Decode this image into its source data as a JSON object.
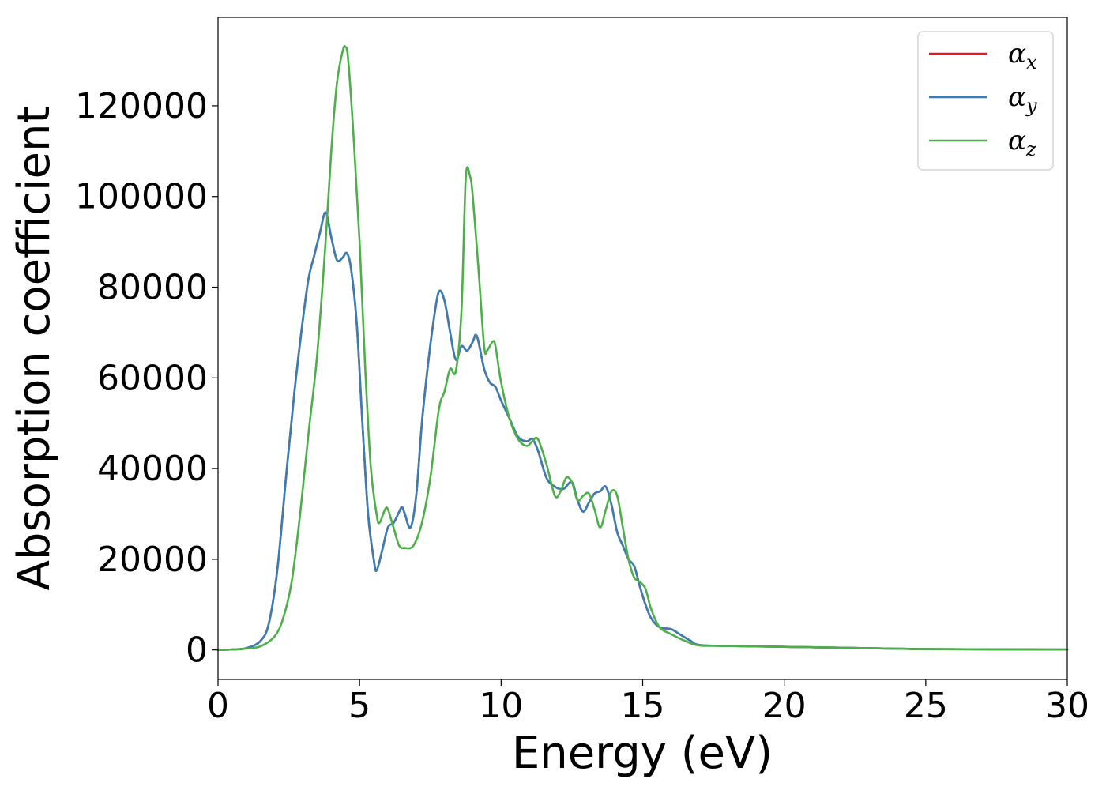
{
  "chart_data": {
    "type": "line",
    "xlabel": "Energy (eV)",
    "ylabel": "Absorption coefficient",
    "xlim": [
      0,
      30
    ],
    "ylim": [
      -6500,
      139500
    ],
    "xticks": [
      0,
      5,
      10,
      15,
      20,
      25,
      30
    ],
    "yticks": [
      0,
      20000,
      40000,
      60000,
      80000,
      100000,
      120000
    ],
    "grid": false,
    "legend_position": "top-right",
    "series": [
      {
        "name": "α_x",
        "legend_symbol": "α",
        "legend_subscript": "x",
        "color": "#e41a1c",
        "points": [
          [
            0,
            0
          ],
          [
            0.5,
            100
          ],
          [
            1,
            400
          ],
          [
            1.5,
            2000
          ],
          [
            1.8,
            6000
          ],
          [
            2.1,
            18000
          ],
          [
            2.4,
            38000
          ],
          [
            2.7,
            57000
          ],
          [
            3.0,
            73000
          ],
          [
            3.2,
            82000
          ],
          [
            3.4,
            87000
          ],
          [
            3.6,
            92000
          ],
          [
            3.8,
            96500
          ],
          [
            4.0,
            91000
          ],
          [
            4.2,
            86000
          ],
          [
            4.4,
            86500
          ],
          [
            4.55,
            87500
          ],
          [
            4.7,
            84000
          ],
          [
            4.9,
            72000
          ],
          [
            5.1,
            50000
          ],
          [
            5.3,
            30000
          ],
          [
            5.5,
            20000
          ],
          [
            5.6,
            17500
          ],
          [
            5.8,
            22000
          ],
          [
            6.0,
            27000
          ],
          [
            6.2,
            28000
          ],
          [
            6.4,
            30500
          ],
          [
            6.5,
            31500
          ],
          [
            6.6,
            30000
          ],
          [
            6.8,
            27000
          ],
          [
            7.0,
            34000
          ],
          [
            7.2,
            50000
          ],
          [
            7.4,
            62000
          ],
          [
            7.6,
            72000
          ],
          [
            7.8,
            79000
          ],
          [
            8.0,
            77000
          ],
          [
            8.2,
            70000
          ],
          [
            8.4,
            64000
          ],
          [
            8.6,
            67000
          ],
          [
            8.8,
            66000
          ],
          [
            9.0,
            68000
          ],
          [
            9.1,
            69500
          ],
          [
            9.2,
            68000
          ],
          [
            9.4,
            62000
          ],
          [
            9.6,
            59000
          ],
          [
            9.8,
            58000
          ],
          [
            10.0,
            55000
          ],
          [
            10.3,
            51000
          ],
          [
            10.6,
            47000
          ],
          [
            10.9,
            46000
          ],
          [
            11.1,
            46500
          ],
          [
            11.3,
            44000
          ],
          [
            11.6,
            38000
          ],
          [
            11.9,
            36000
          ],
          [
            12.2,
            35500
          ],
          [
            12.5,
            37000
          ],
          [
            12.7,
            33000
          ],
          [
            12.9,
            30500
          ],
          [
            13.1,
            32500
          ],
          [
            13.3,
            34500
          ],
          [
            13.5,
            35000
          ],
          [
            13.7,
            36000
          ],
          [
            13.9,
            32000
          ],
          [
            14.1,
            26000
          ],
          [
            14.3,
            23000
          ],
          [
            14.5,
            20000
          ],
          [
            14.7,
            18500
          ],
          [
            14.9,
            14000
          ],
          [
            15.1,
            10000
          ],
          [
            15.3,
            7000
          ],
          [
            15.6,
            5000
          ],
          [
            16.0,
            4600
          ],
          [
            16.3,
            3500
          ],
          [
            16.7,
            2000
          ],
          [
            17.0,
            1100
          ],
          [
            18.0,
            900
          ],
          [
            20.0,
            700
          ],
          [
            22.0,
            500
          ],
          [
            25.0,
            200
          ],
          [
            30.0,
            100
          ]
        ]
      },
      {
        "name": "α_y",
        "legend_symbol": "α",
        "legend_subscript": "y",
        "color": "#377eb8",
        "points": [
          [
            0,
            0
          ],
          [
            0.5,
            100
          ],
          [
            1,
            400
          ],
          [
            1.5,
            2000
          ],
          [
            1.8,
            6000
          ],
          [
            2.1,
            18000
          ],
          [
            2.4,
            38000
          ],
          [
            2.7,
            57000
          ],
          [
            3.0,
            73000
          ],
          [
            3.2,
            82000
          ],
          [
            3.4,
            87000
          ],
          [
            3.6,
            92000
          ],
          [
            3.8,
            96500
          ],
          [
            4.0,
            91000
          ],
          [
            4.2,
            86000
          ],
          [
            4.4,
            86500
          ],
          [
            4.55,
            87500
          ],
          [
            4.7,
            84000
          ],
          [
            4.9,
            72000
          ],
          [
            5.1,
            50000
          ],
          [
            5.3,
            30000
          ],
          [
            5.5,
            20000
          ],
          [
            5.6,
            17500
          ],
          [
            5.8,
            22000
          ],
          [
            6.0,
            27000
          ],
          [
            6.2,
            28000
          ],
          [
            6.4,
            30500
          ],
          [
            6.5,
            31500
          ],
          [
            6.6,
            30000
          ],
          [
            6.8,
            27000
          ],
          [
            7.0,
            34000
          ],
          [
            7.2,
            50000
          ],
          [
            7.4,
            62000
          ],
          [
            7.6,
            72000
          ],
          [
            7.8,
            79000
          ],
          [
            8.0,
            77000
          ],
          [
            8.2,
            70000
          ],
          [
            8.4,
            64000
          ],
          [
            8.6,
            67000
          ],
          [
            8.8,
            66000
          ],
          [
            9.0,
            68000
          ],
          [
            9.1,
            69500
          ],
          [
            9.2,
            68000
          ],
          [
            9.4,
            62000
          ],
          [
            9.6,
            59000
          ],
          [
            9.8,
            58000
          ],
          [
            10.0,
            55000
          ],
          [
            10.3,
            51000
          ],
          [
            10.6,
            47000
          ],
          [
            10.9,
            46000
          ],
          [
            11.1,
            46500
          ],
          [
            11.3,
            44000
          ],
          [
            11.6,
            38000
          ],
          [
            11.9,
            36000
          ],
          [
            12.2,
            35500
          ],
          [
            12.5,
            37000
          ],
          [
            12.7,
            33000
          ],
          [
            12.9,
            30500
          ],
          [
            13.1,
            32500
          ],
          [
            13.3,
            34500
          ],
          [
            13.5,
            35000
          ],
          [
            13.7,
            36000
          ],
          [
            13.9,
            32000
          ],
          [
            14.1,
            26000
          ],
          [
            14.3,
            23000
          ],
          [
            14.5,
            20000
          ],
          [
            14.7,
            18500
          ],
          [
            14.9,
            14000
          ],
          [
            15.1,
            10000
          ],
          [
            15.3,
            7000
          ],
          [
            15.6,
            5000
          ],
          [
            16.0,
            4600
          ],
          [
            16.3,
            3500
          ],
          [
            16.7,
            2000
          ],
          [
            17.0,
            1100
          ],
          [
            18.0,
            900
          ],
          [
            20.0,
            700
          ],
          [
            22.0,
            500
          ],
          [
            25.0,
            200
          ],
          [
            30.0,
            100
          ]
        ]
      },
      {
        "name": "α_z",
        "legend_symbol": "α",
        "legend_subscript": "z",
        "color": "#4daf4a",
        "points": [
          [
            0,
            0
          ],
          [
            0.5,
            100
          ],
          [
            1,
            300
          ],
          [
            1.5,
            800
          ],
          [
            2.0,
            3000
          ],
          [
            2.3,
            7000
          ],
          [
            2.6,
            15000
          ],
          [
            2.9,
            30000
          ],
          [
            3.2,
            48000
          ],
          [
            3.5,
            65000
          ],
          [
            3.8,
            90000
          ],
          [
            4.0,
            110000
          ],
          [
            4.2,
            125000
          ],
          [
            4.4,
            132000
          ],
          [
            4.5,
            133000
          ],
          [
            4.6,
            130000
          ],
          [
            4.8,
            112000
          ],
          [
            5.0,
            90000
          ],
          [
            5.2,
            62000
          ],
          [
            5.4,
            40000
          ],
          [
            5.6,
            30000
          ],
          [
            5.7,
            28000
          ],
          [
            5.9,
            31000
          ],
          [
            6.0,
            31000
          ],
          [
            6.2,
            27000
          ],
          [
            6.4,
            23000
          ],
          [
            6.6,
            22500
          ],
          [
            6.9,
            23000
          ],
          [
            7.2,
            28000
          ],
          [
            7.5,
            38000
          ],
          [
            7.8,
            53000
          ],
          [
            8.0,
            57000
          ],
          [
            8.2,
            62000
          ],
          [
            8.4,
            61500
          ],
          [
            8.6,
            75000
          ],
          [
            8.75,
            104000
          ],
          [
            8.9,
            104500
          ],
          [
            9.0,
            100000
          ],
          [
            9.2,
            84000
          ],
          [
            9.4,
            67000
          ],
          [
            9.5,
            66000
          ],
          [
            9.7,
            68000
          ],
          [
            9.8,
            67000
          ],
          [
            10.0,
            59000
          ],
          [
            10.3,
            51000
          ],
          [
            10.6,
            46500
          ],
          [
            10.9,
            45000
          ],
          [
            11.1,
            46000
          ],
          [
            11.3,
            46500
          ],
          [
            11.6,
            41000
          ],
          [
            11.9,
            34000
          ],
          [
            12.1,
            35000
          ],
          [
            12.3,
            38000
          ],
          [
            12.5,
            37000
          ],
          [
            12.7,
            33000
          ],
          [
            12.9,
            34000
          ],
          [
            13.1,
            34500
          ],
          [
            13.3,
            31000
          ],
          [
            13.5,
            27000
          ],
          [
            13.7,
            31000
          ],
          [
            13.9,
            35000
          ],
          [
            14.1,
            34000
          ],
          [
            14.3,
            27000
          ],
          [
            14.5,
            20000
          ],
          [
            14.7,
            16000
          ],
          [
            14.9,
            15000
          ],
          [
            15.1,
            13500
          ],
          [
            15.3,
            9000
          ],
          [
            15.6,
            5000
          ],
          [
            16.0,
            3500
          ],
          [
            16.5,
            2000
          ],
          [
            17.0,
            1000
          ],
          [
            18.0,
            900
          ],
          [
            20.0,
            700
          ],
          [
            22.0,
            500
          ],
          [
            25.0,
            200
          ],
          [
            30.0,
            100
          ]
        ]
      }
    ]
  }
}
